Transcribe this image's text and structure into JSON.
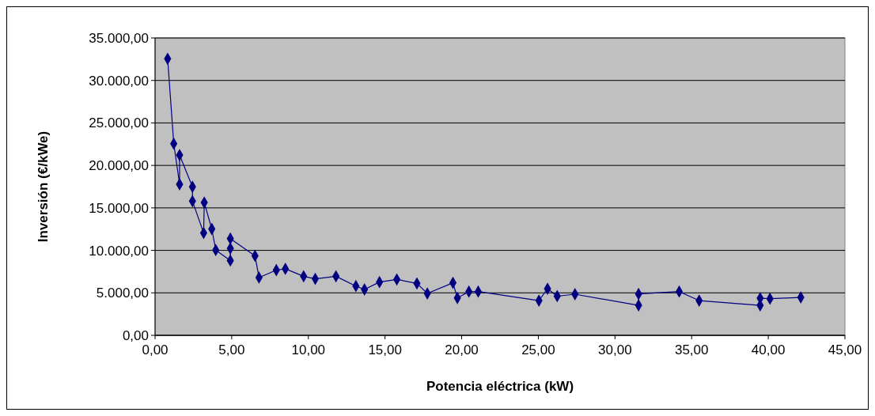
{
  "chart_data": {
    "type": "line",
    "xlabel": "Potencia eléctrica (kW)",
    "ylabel": "Inversión (€/kWe)",
    "xlim": [
      0,
      45
    ],
    "ylim": [
      0,
      35000
    ],
    "xticks": [
      {
        "value": 0,
        "label": "0,00"
      },
      {
        "value": 5,
        "label": "5,00"
      },
      {
        "value": 10,
        "label": "10,00"
      },
      {
        "value": 15,
        "label": "15,00"
      },
      {
        "value": 20,
        "label": "20,00"
      },
      {
        "value": 25,
        "label": "25,00"
      },
      {
        "value": 30,
        "label": "30,00"
      },
      {
        "value": 35,
        "label": "35,00"
      },
      {
        "value": 40,
        "label": "40,00"
      },
      {
        "value": 45,
        "label": "45,00"
      }
    ],
    "yticks": [
      {
        "value": 0,
        "label": "0,00"
      },
      {
        "value": 5000,
        "label": "5.000,00"
      },
      {
        "value": 10000,
        "label": "10.000,00"
      },
      {
        "value": 15000,
        "label": "15.000,00"
      },
      {
        "value": 20000,
        "label": "20.000,00"
      },
      {
        "value": 25000,
        "label": "25.000,00"
      },
      {
        "value": 30000,
        "label": "30.000,00"
      },
      {
        "value": 35000,
        "label": "35.000,00"
      }
    ],
    "grid": "y",
    "marker": "diamond",
    "line_style": "solid",
    "series": [
      {
        "color": "#000080",
        "x": [
          0.82,
          1.22,
          1.6,
          1.6,
          2.44,
          2.44,
          3.17,
          3.21,
          3.7,
          3.96,
          4.91,
          4.91,
          4.91,
          6.52,
          6.78,
          7.91,
          8.5,
          9.69,
          10.45,
          11.8,
          13.1,
          13.66,
          14.64,
          15.77,
          17.08,
          17.76,
          19.43,
          19.72,
          20.47,
          21.08,
          25.04,
          25.6,
          26.23,
          27.39,
          31.54,
          31.54,
          34.19,
          35.49,
          39.47,
          39.47,
          40.11,
          42.12
        ],
        "values": [
          32550,
          22560,
          17780,
          21220,
          17480,
          15790,
          12050,
          15630,
          12520,
          10040,
          8800,
          10230,
          11390,
          9360,
          6800,
          7680,
          7830,
          6950,
          6650,
          6950,
          5800,
          5400,
          6270,
          6580,
          6110,
          4930,
          6180,
          4400,
          5150,
          5150,
          4090,
          5490,
          4610,
          4840,
          3530,
          4870,
          5150,
          4090,
          3530,
          4370,
          4310,
          4460
        ]
      }
    ]
  }
}
